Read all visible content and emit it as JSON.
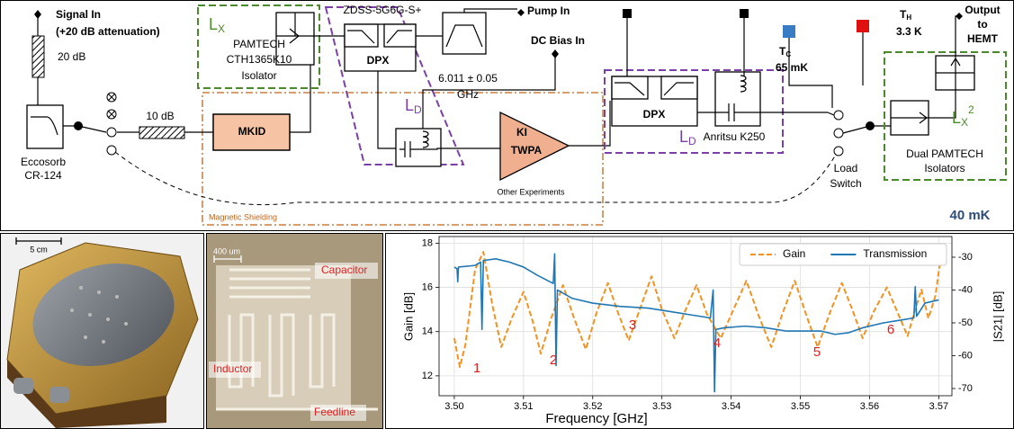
{
  "diagram": {
    "signal_in": "Signal In",
    "attenuation": "(+20 dB attenuation)",
    "att_20": "20 dB",
    "eccosorb": [
      "Eccosorb",
      "CR-124"
    ],
    "att_10": "10 dB",
    "mkid": "MKID",
    "lx": {
      "base": "L",
      "sub": "X"
    },
    "isolator": [
      "PAMTECH",
      "CTH1365K10",
      "Isolator"
    ],
    "diplexer_model": "ZDSS-5G6G-S+",
    "dpx1": "DPX",
    "pump_in": "Pump In",
    "filter": [
      "6.011 ± 0.05",
      "GHz"
    ],
    "dc_bias": "DC Bias In",
    "ld1": {
      "base": "L",
      "sub": "D"
    },
    "twpa": [
      "KI",
      "TWPA"
    ],
    "other": "Other Experiments",
    "shielding": "Magnetic Shielding",
    "dpx2": "DPX",
    "ld2": {
      "base": "L",
      "sub": "D"
    },
    "anritsu": "Anritsu K250",
    "tc": {
      "base": "T",
      "sub": "C",
      "value": "65 mK"
    },
    "th": {
      "base": "T",
      "sub": "H",
      "value": "3.3 K"
    },
    "load_switch": [
      "Load",
      "Switch"
    ],
    "output": [
      "Output",
      "to",
      "HEMT"
    ],
    "lx2": {
      "base": "L",
      "sub": "X",
      "sup": "2"
    },
    "dual": [
      "Dual PAMTECH",
      "Isolators"
    ],
    "temperature": "40 mK"
  },
  "photos": {
    "scale_box": "5 cm",
    "scale_chip": "400 um",
    "capacitor": "Capacitor",
    "inductor": "Inductor",
    "feedline": "Feedline"
  },
  "chart_data": {
    "type": "line",
    "x_label": "Frequency [GHz]",
    "y_label": "Gain [dB]",
    "y2_label": "|S21| [dB]",
    "xlim": [
      3.4978,
      3.5719
    ],
    "xticks": [
      {
        "value": 3.5,
        "label": "3.50"
      },
      3.51,
      3.52,
      3.53,
      3.54,
      3.55,
      3.56,
      3.57
    ],
    "ylim": [
      11.1,
      18.3
    ],
    "yticks": [
      12,
      14,
      16,
      18
    ],
    "y2lim": [
      -72.2,
      -23.7
    ],
    "y2ticks": [
      -70,
      -60,
      -50,
      -40,
      -30
    ],
    "grid": true,
    "legend": "upper right",
    "annotations": [
      "1",
      "2",
      "3",
      "4",
      "5",
      "6"
    ],
    "series": [
      {
        "name": "Gain",
        "color": "#f39221",
        "dashed": true,
        "x": [
          3.5,
          3.5008,
          3.5016,
          3.503,
          3.5042,
          3.5055,
          3.5068,
          3.5083,
          3.51,
          3.5113,
          3.5125,
          3.514,
          3.5157,
          3.5172,
          3.519,
          3.5205,
          3.5222,
          3.5236,
          3.5252,
          3.5268,
          3.5285,
          3.53,
          3.5318,
          3.5333,
          3.535,
          3.5365,
          3.5385,
          3.5402,
          3.5422,
          3.544,
          3.5458,
          3.5474,
          3.5492,
          3.5508,
          3.5525,
          3.5542,
          3.556,
          3.5575,
          3.559,
          3.5606,
          3.5625,
          3.564,
          3.5655,
          3.5665,
          3.5675,
          3.5685,
          3.5695,
          3.5705
        ],
        "values": [
          13.7,
          12.4,
          13.4,
          16.8,
          17.6,
          15.2,
          13.3,
          14.6,
          15.8,
          14.5,
          13.0,
          14.6,
          16.1,
          14.7,
          13.2,
          14.8,
          16.2,
          14.9,
          13.6,
          15.0,
          16.5,
          15.0,
          13.7,
          14.9,
          16.1,
          14.8,
          13.7,
          14.9,
          16.3,
          14.7,
          13.3,
          14.8,
          16.3,
          14.8,
          13.3,
          14.8,
          16.2,
          15.0,
          13.7,
          14.9,
          16.0,
          14.9,
          13.8,
          14.9,
          15.9,
          14.6,
          15.6,
          17.8
        ]
      },
      {
        "name": "Transmission",
        "color": "#1f77b4",
        "dashed": false,
        "axis": "y2",
        "x": [
          3.5,
          3.5004,
          3.5005,
          3.5006,
          3.503,
          3.5038,
          3.504,
          3.5042,
          3.506,
          3.508,
          3.51,
          3.512,
          3.5143,
          3.5145,
          3.5147,
          3.5149,
          3.517,
          3.52,
          3.524,
          3.528,
          3.531,
          3.534,
          3.537,
          3.5374,
          3.5376,
          3.5378,
          3.539,
          3.542,
          3.545,
          3.548,
          3.551,
          3.553,
          3.555,
          3.557,
          3.559,
          3.562,
          3.565,
          3.5664,
          3.5666,
          3.5668,
          3.568,
          3.57
        ],
        "values": [
          -33,
          -33.5,
          -37.5,
          -33,
          -32.5,
          -31.5,
          -52,
          -31,
          -30.5,
          -31.5,
          -33,
          -35.5,
          -38,
          -29,
          -63,
          -40,
          -42.5,
          -44,
          -45,
          -45.5,
          -46.5,
          -47.5,
          -48.5,
          -40,
          -71,
          -52,
          -51.5,
          -51,
          -51.5,
          -52.5,
          -52.5,
          -52.5,
          -53.5,
          -53,
          -51.5,
          -50,
          -49,
          -48.5,
          -39,
          -48,
          -44,
          -43
        ]
      }
    ]
  }
}
